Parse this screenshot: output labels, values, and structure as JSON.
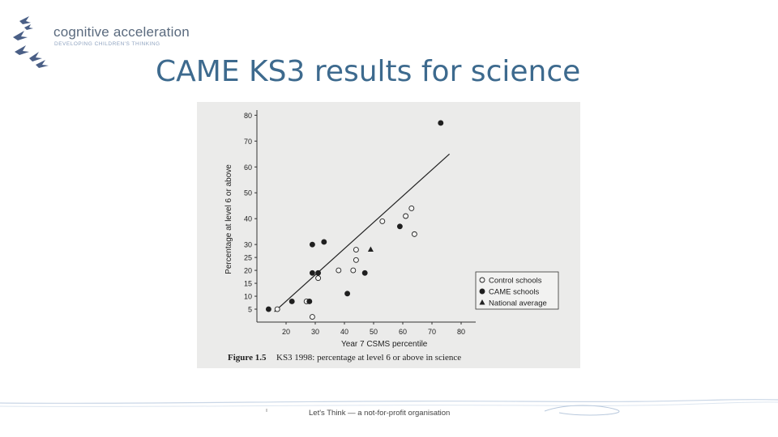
{
  "logo": {
    "title": "cognitive acceleration",
    "tagline": "DEVELOPING CHILDREN'S THINKING"
  },
  "slide": {
    "title": "CAME KS3 results for science"
  },
  "footer": {
    "text": "Let's Think — a not-for-profit organisation"
  },
  "colors": {
    "title": "#3d6a8e",
    "logo_birds": "#4a5f86",
    "photo_bg": "#ebebea"
  },
  "chart_data": {
    "type": "scatter",
    "caption_label": "Figure 1.5",
    "caption_text": "KS3 1998: percentage at level 6 or above in science",
    "xlabel": "Year 7 CSMS percentile",
    "ylabel": "Percentage at level 6 or above",
    "xlim": [
      10,
      85
    ],
    "ylim": [
      0,
      82
    ],
    "x_ticks": [
      20,
      30,
      40,
      50,
      60,
      70,
      80
    ],
    "y_ticks": [
      5,
      10,
      15,
      20,
      25,
      30,
      40,
      50,
      60,
      70,
      80
    ],
    "legend_position": "bottom-right",
    "series": [
      {
        "name": "Control schools",
        "marker": "open-circle",
        "points": [
          [
            17,
            5
          ],
          [
            27,
            8
          ],
          [
            29,
            2
          ],
          [
            31,
            17
          ],
          [
            38,
            20
          ],
          [
            43,
            20
          ],
          [
            44,
            24
          ],
          [
            44,
            28
          ],
          [
            53,
            39
          ],
          [
            61,
            41
          ],
          [
            63,
            44
          ],
          [
            64,
            34
          ]
        ]
      },
      {
        "name": "CAME schools",
        "marker": "filled-circle",
        "points": [
          [
            14,
            5
          ],
          [
            22,
            8
          ],
          [
            28,
            8
          ],
          [
            29,
            19
          ],
          [
            29,
            30
          ],
          [
            31,
            19
          ],
          [
            33,
            31
          ],
          [
            41,
            11
          ],
          [
            47,
            19
          ],
          [
            59,
            37
          ],
          [
            73,
            77
          ]
        ]
      },
      {
        "name": "National average",
        "marker": "triangle",
        "points": [
          [
            49,
            28
          ]
        ]
      }
    ],
    "trend_line": {
      "from": [
        16,
        4
      ],
      "to": [
        76,
        65
      ]
    }
  }
}
